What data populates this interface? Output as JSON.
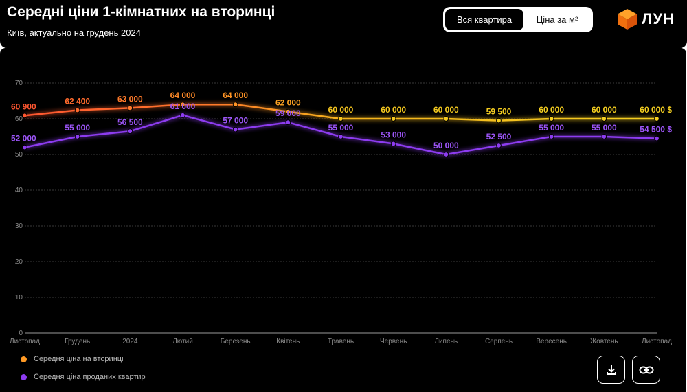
{
  "header": {
    "title": "Середні ціни 1-кімнатних на вторинці",
    "subtitle": "Київ, актуально на грудень 2024"
  },
  "toggle": {
    "options": [
      "Вся квартира",
      "Ціна за м²"
    ],
    "selected": "Вся квартира"
  },
  "logo": {
    "text": "ЛУН",
    "icon": "orange-cube-icon"
  },
  "actions": {
    "download_icon": "download-icon",
    "link_icon": "link-icon"
  },
  "colors": {
    "background": "#000000",
    "series_on_market_start": "#ff5630",
    "series_on_market_end": "#f5d020",
    "series_sold": "#8d3cf0",
    "grid": "#3a3a3a",
    "tick": "#8a8a8a"
  },
  "chart_data": {
    "type": "line",
    "categories": [
      "Листопад",
      "Грудень",
      "2024",
      "Лютий",
      "Березень",
      "Квітень",
      "Травень",
      "Червень",
      "Липень",
      "Серпень",
      "Вересень",
      "Жовтень",
      "Листопад"
    ],
    "series": [
      {
        "name": "Середня ціна на вторинці",
        "values": [
          60900,
          62400,
          63000,
          64000,
          64000,
          62000,
          60000,
          60000,
          60000,
          59500,
          60000,
          60000,
          60000
        ],
        "labels": [
          "60 900",
          "62 400",
          "63 000",
          "64 000",
          "64 000",
          "62 000",
          "60 000",
          "60 000",
          "60 000",
          "59 500",
          "60 000",
          "60 000",
          "60 000 $"
        ]
      },
      {
        "name": "Середня ціна проданих квартир",
        "values": [
          52000,
          55000,
          56500,
          61000,
          57000,
          59000,
          55000,
          53000,
          50000,
          52500,
          55000,
          55000,
          54500
        ],
        "labels": [
          "52 000",
          "55 000",
          "56 500",
          "61 000",
          "57 000",
          "59 000",
          "55 000",
          "53 000",
          "50 000",
          "52 500",
          "55 000",
          "55 000",
          "54 500 $"
        ]
      }
    ],
    "y_ticks": [
      "0",
      "10",
      "20",
      "30",
      "40",
      "50",
      "60",
      "70"
    ],
    "y_tick_values": [
      0,
      10000,
      20000,
      30000,
      40000,
      50000,
      60000,
      70000
    ],
    "ylim": [
      0,
      70000
    ],
    "grid": true,
    "legend_position": "bottom-left"
  }
}
